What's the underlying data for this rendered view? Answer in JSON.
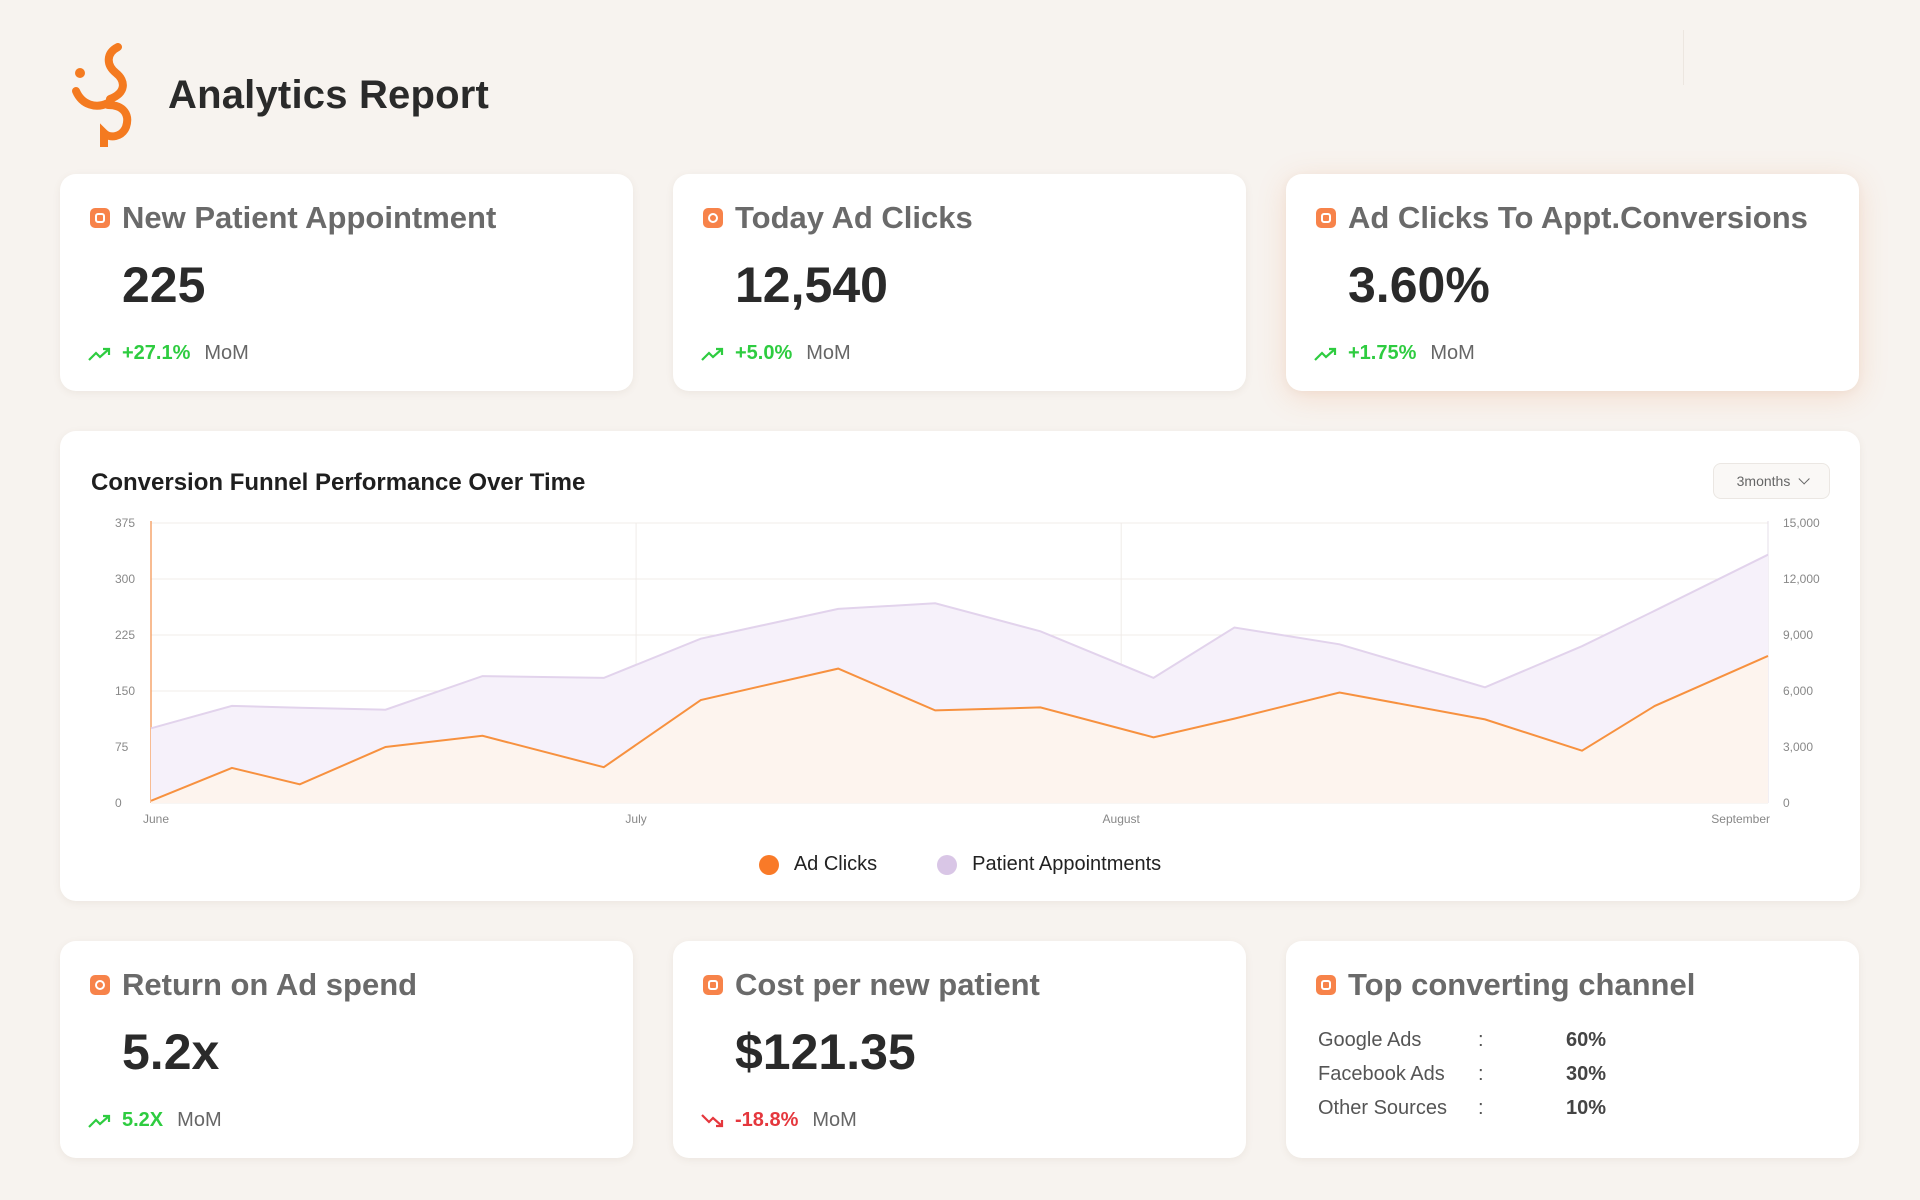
{
  "header": {
    "title": "Analytics Report"
  },
  "kpis": [
    {
      "title": "New Patient Appointment",
      "value": "225",
      "change": "+27.1%",
      "direction": "up",
      "unit": "MoM",
      "icon": "calendar-icon"
    },
    {
      "title": "Today Ad Clicks",
      "value": "12,540",
      "change": "+5.0%",
      "direction": "up",
      "unit": "MoM",
      "icon": "click-icon"
    },
    {
      "title": "Ad Clicks To Appt.Conversions",
      "value": "3.60%",
      "change": "+1.75%",
      "direction": "up",
      "unit": "MoM",
      "icon": "hand-pointer-icon"
    },
    {
      "title": "Return on Ad spend",
      "value": "5.2x",
      "change": "5.2X",
      "direction": "up",
      "unit": "MoM",
      "icon": "refresh-icon"
    },
    {
      "title": "Cost per new patient",
      "value": "$121.35",
      "change": "-18.8%",
      "direction": "down",
      "unit": "MoM",
      "icon": "no-entry-icon"
    }
  ],
  "top_channel": {
    "title": "Top converting channel",
    "icon": "grid-icon",
    "rows": [
      {
        "name": "Google Ads",
        "sep": ":",
        "pct": "60%"
      },
      {
        "name": "Facebook Ads",
        "sep": ":",
        "pct": "30%"
      },
      {
        "name": "Other Sources",
        "sep": ":",
        "pct": "10%"
      }
    ]
  },
  "chart": {
    "range": "3months",
    "legend": [
      {
        "label": "Ad Clicks",
        "color": "#f97a28"
      },
      {
        "label": "Patient Appointments",
        "color": "#d9c6e6"
      }
    ]
  },
  "colors": {
    "accent": "#f7834a",
    "up": "#2ecc40",
    "down": "#e5373d"
  },
  "chart_data": {
    "type": "area",
    "title": "Conversion Funnel Performance Over Time",
    "x_ticks": [
      "June",
      "July",
      "August",
      "September"
    ],
    "x_tick_positions": [
      0,
      3,
      6,
      9
    ],
    "x": [
      0,
      0.5,
      0.92,
      1.45,
      2.05,
      2.8,
      3.4,
      4.25,
      4.85,
      5.5,
      6.2,
      6.7,
      7.35,
      8.25,
      8.85,
      9.3,
      10.0
    ],
    "y_left": {
      "ticks": [
        "0",
        "75",
        "150",
        "225",
        "300",
        "375"
      ],
      "range": [
        0,
        375
      ]
    },
    "y_right": {
      "ticks": [
        "0",
        "3,000",
        "6,000",
        "9,000",
        "12,000",
        "15,000"
      ],
      "range": [
        0,
        15000
      ]
    },
    "series": [
      {
        "name": "Ad Clicks",
        "axis": "left",
        "values": [
          3,
          47,
          25,
          75,
          90,
          48,
          138,
          180,
          124,
          128,
          88,
          113,
          148,
          112,
          70,
          130,
          197
        ]
      },
      {
        "name": "Patient Appointments",
        "axis": "right",
        "values": [
          4000,
          5200,
          5100,
          5000,
          6800,
          6700,
          8800,
          10400,
          10700,
          9200,
          6700,
          9400,
          8500,
          6200,
          8400,
          10300,
          13300
        ]
      }
    ]
  }
}
